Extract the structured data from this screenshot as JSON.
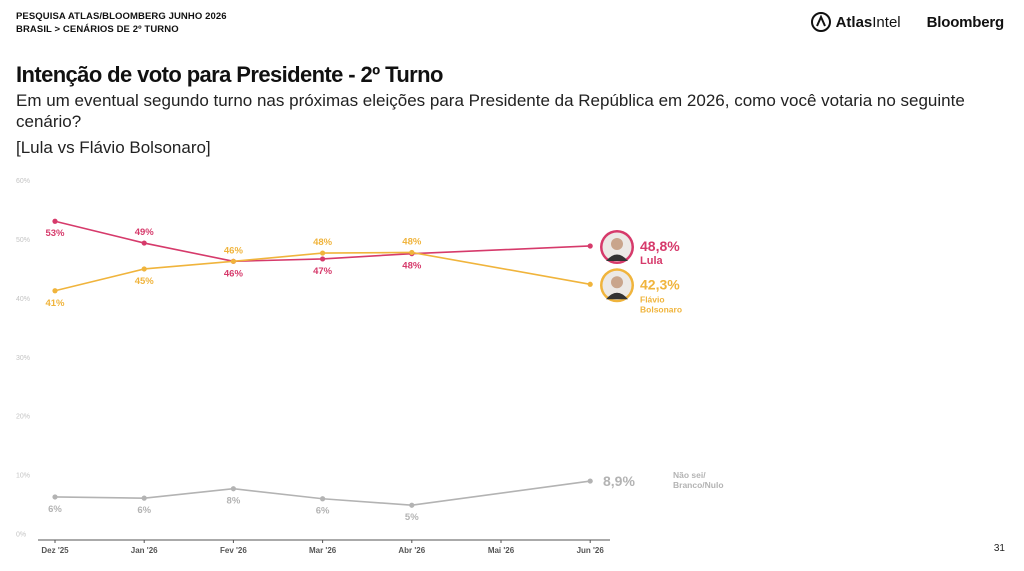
{
  "header": {
    "line1": "PESQUISA ATLAS/BLOOMBERG JUNHO 2026",
    "line2": "BRASIL > CENÁRIOS DE 2º TURNO"
  },
  "logos": {
    "atlas_bold": "Atlas",
    "atlas_light": "Intel",
    "bloomberg": "Bloomberg"
  },
  "title": "Intenção de voto para Presidente - 2º Turno",
  "question": "Em um eventual segundo turno nas próximas eleições para Presidente da República em 2026, como você votaria no seguinte cenário?",
  "scenario": "[Lula vs Flávio Bolsonaro]",
  "page_number": "31",
  "chart_data": {
    "type": "line",
    "x": [
      "Dez '25",
      "Jan '26",
      "Fev '26",
      "Mar '26",
      "Abr '26",
      "Mai '26",
      "Jun '26"
    ],
    "yticks": [
      "0%",
      "10%",
      "20%",
      "30%",
      "40%",
      "50%",
      "60%"
    ],
    "ylim": [
      0,
      60
    ],
    "series": [
      {
        "key": "lula",
        "color": "#d63a6b",
        "values": [
          53,
          49.3,
          46.2,
          46.6,
          47.5,
          null,
          48.8
        ],
        "labels": [
          "53%",
          "49%",
          "46%",
          "47%",
          "48%",
          "",
          ""
        ],
        "label_side": [
          "below",
          "above",
          "below",
          "below",
          "below",
          "",
          ""
        ],
        "final_label": "48,8%",
        "name_lines": [
          "Lula"
        ],
        "avatar": true
      },
      {
        "key": "flavio",
        "color": "#f0b43c",
        "values": [
          41.2,
          44.9,
          46.2,
          47.6,
          47.7,
          null,
          42.3
        ],
        "labels": [
          "41%",
          "45%",
          "46%",
          "48%",
          "48%",
          "",
          ""
        ],
        "label_side": [
          "below",
          "below",
          "above",
          "above",
          "above",
          "",
          ""
        ],
        "final_label": "42,3%",
        "name_lines": [
          "Flávio",
          "Bolsonaro"
        ],
        "avatar": true
      },
      {
        "key": "nao_sei",
        "color": "#b3b3b3",
        "values": [
          6.2,
          6.0,
          7.6,
          5.9,
          4.8,
          null,
          8.9
        ],
        "labels": [
          "6%",
          "6%",
          "8%",
          "6%",
          "5%",
          "",
          ""
        ],
        "label_side": [
          "below",
          "below",
          "below",
          "below",
          "below",
          "",
          ""
        ],
        "final_label": "8,9%",
        "name_lines": [
          "Não sei/",
          "Branco/Nulo"
        ],
        "avatar": false
      }
    ]
  }
}
